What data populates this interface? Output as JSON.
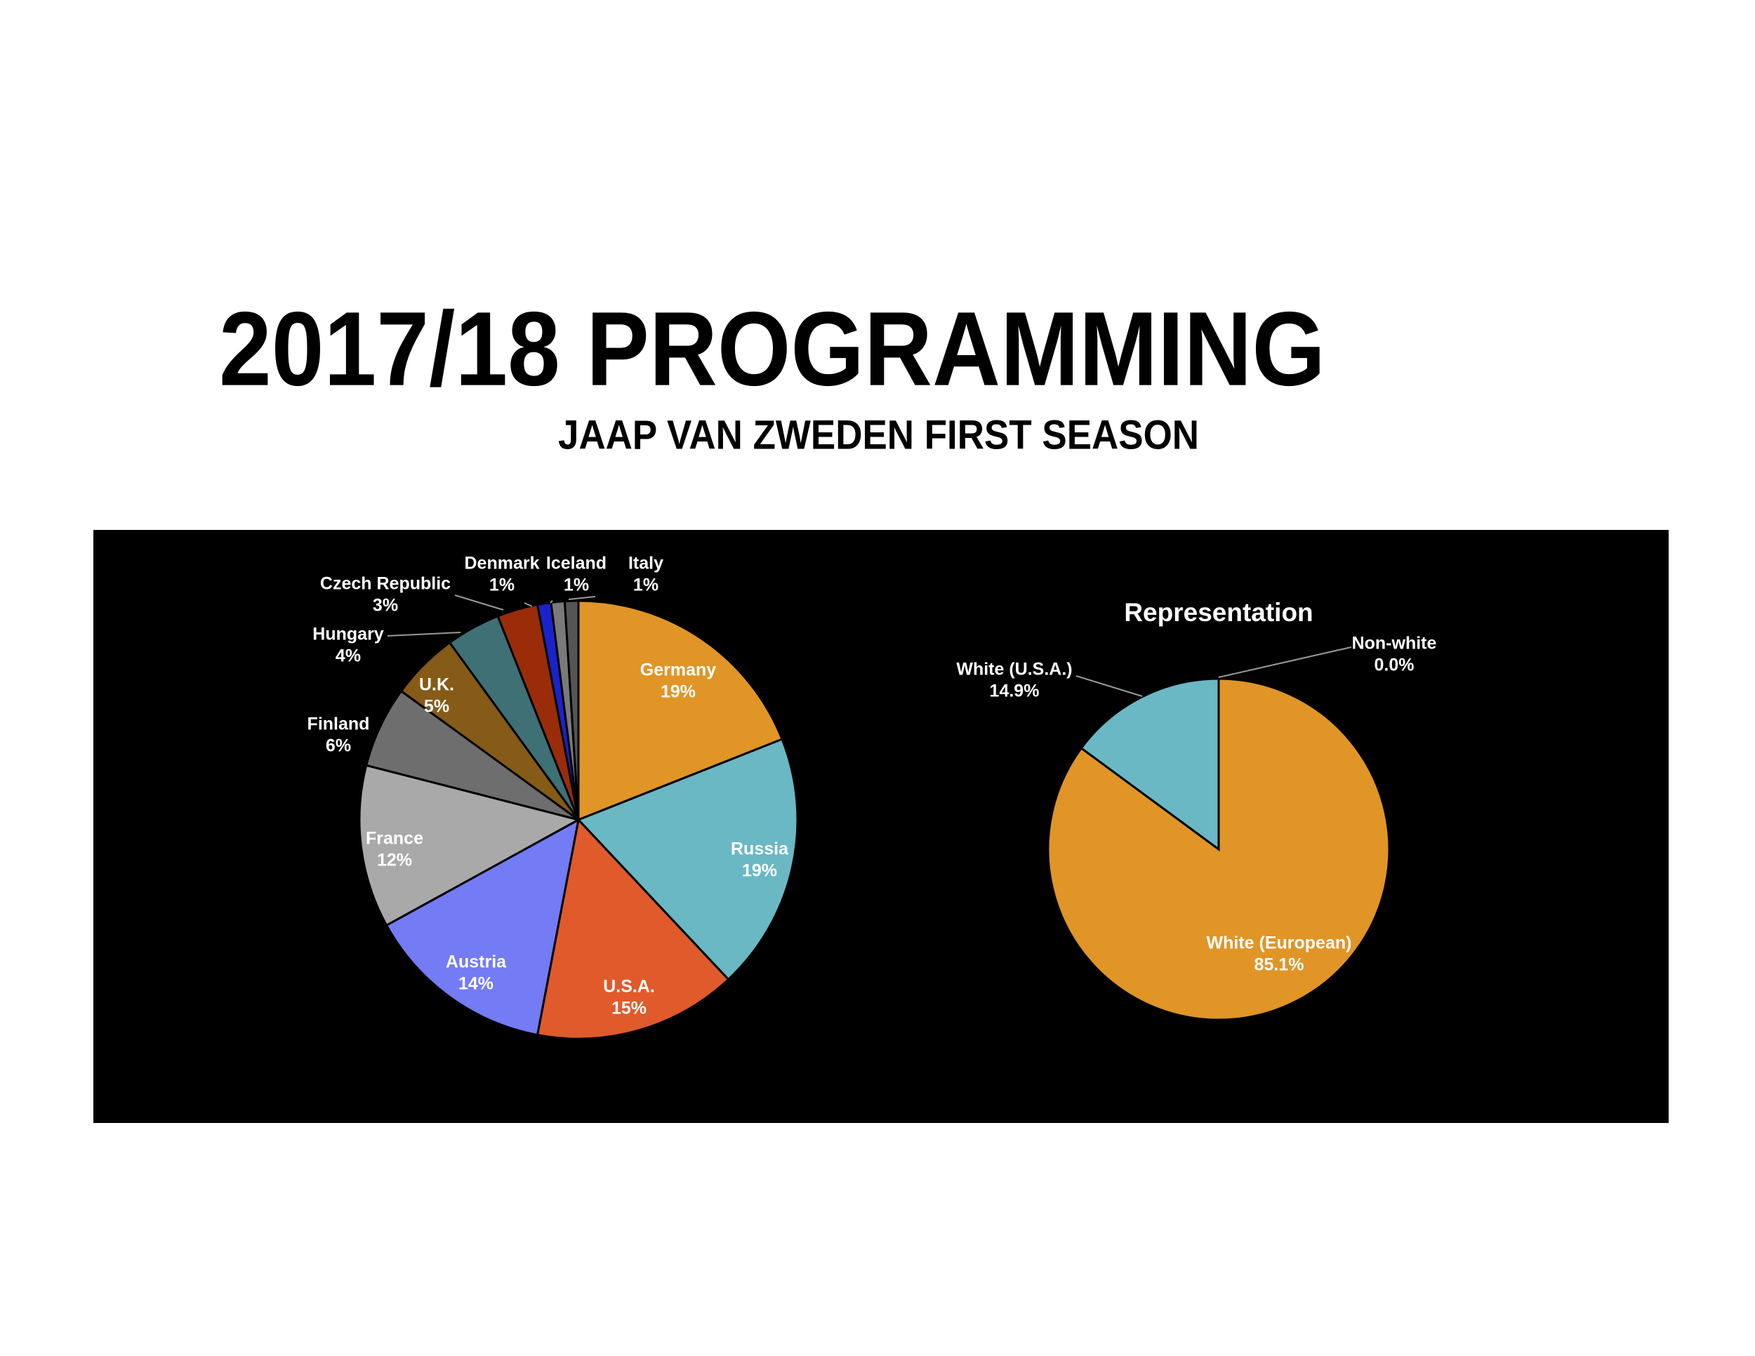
{
  "header": {
    "title": "2017/18 PROGRAMMING",
    "subtitle": "JAAP VAN ZWEDEN FIRST SEASON"
  },
  "chart_data": [
    {
      "type": "pie",
      "categories": [
        "Germany",
        "Russia",
        "U.S.A.",
        "Austria",
        "France",
        "Finland",
        "U.K.",
        "Hungary",
        "Czech Republic",
        "Denmark",
        "Iceland",
        "Italy"
      ],
      "values": [
        19,
        19,
        15,
        14,
        12,
        6,
        5,
        4,
        3,
        1,
        1,
        1
      ],
      "value_labels": [
        "19%",
        "19%",
        "15%",
        "14%",
        "12%",
        "6%",
        "5%",
        "4%",
        "3%",
        "1%",
        "1%",
        "1%"
      ],
      "colors": [
        "#e09526",
        "#6ab8c4",
        "#e05a2b",
        "#737bf5",
        "#a9a9a9",
        "#6e6e6e",
        "#865a17",
        "#3e7075",
        "#9a2c0a",
        "#1a22cc",
        "#7a7a7a",
        "#555555"
      ]
    },
    {
      "type": "pie",
      "title": "Representation",
      "categories": [
        "Non-white",
        "White (European)",
        "White (U.S.A.)"
      ],
      "values": [
        0,
        85.1,
        14.9
      ],
      "value_labels": [
        "0.0%",
        "85.1%",
        "14.9%"
      ],
      "colors": [
        "#e05a2b",
        "#e09526",
        "#6ab8c4"
      ]
    }
  ]
}
